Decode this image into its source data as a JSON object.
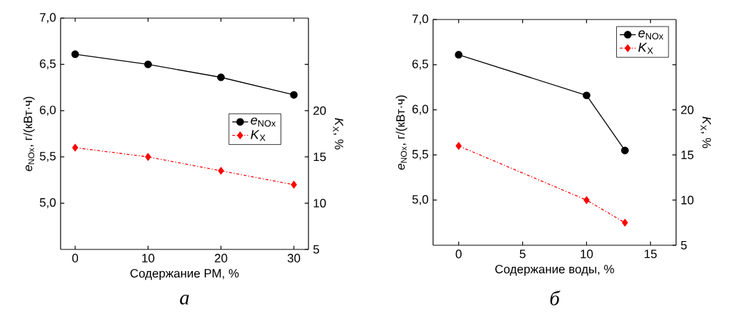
{
  "chart_data": [
    {
      "type": "line",
      "title": "а",
      "xlabel": "Содержание РМ, %",
      "ylabel": "*e*$_{NOx}$, г/(кВт·ч)",
      "y2label": "*K*$_{X}$, %",
      "x": [
        0,
        10,
        20,
        30
      ],
      "xlim": [
        -2,
        32
      ],
      "xticks": [
        0,
        10,
        20,
        30
      ],
      "ylim": [
        4.5,
        7.0
      ],
      "yticks": [
        {
          "value": 5.0,
          "label": "5,0"
        },
        {
          "value": 5.5,
          "label": "5,5"
        },
        {
          "value": 6.0,
          "label": "6,0"
        },
        {
          "value": 6.5,
          "label": "6,5"
        },
        {
          "value": 7.0,
          "label": "7,0"
        }
      ],
      "y2lim": [
        5,
        30
      ],
      "y2ticks": [
        5,
        10,
        15,
        20,
        {
          "value": 25,
          "label": null
        }
      ],
      "grid": false,
      "legend": "right",
      "series": [
        {
          "name": "*e*$_{NOx}$",
          "color": "#000000",
          "values": [
            6.61,
            6.5,
            6.36,
            6.17
          ],
          "marker": "circle",
          "line_style": "solid"
        },
        {
          "name": "*K*$_{X}$",
          "color": "#ff0000",
          "values": [
            16,
            15,
            13.5,
            12
          ],
          "marker": "diamond",
          "line_style": "dashed",
          "axis": "y2"
        }
      ]
    },
    {
      "type": "line",
      "title": "б",
      "xlabel": "Содержание воды, %",
      "ylabel": "*e*$_{NOx}$, г/(кВт·ч)",
      "y2label": "*K*$_{X}$, %",
      "x": [
        0,
        10,
        13
      ],
      "xlim": [
        -2,
        17
      ],
      "xticks": [
        0,
        5,
        10,
        15
      ],
      "ylim": [
        4.5,
        7.0
      ],
      "yticks": [
        {
          "value": 5.0,
          "label": "5,0"
        },
        {
          "value": 5.5,
          "label": "5,5"
        },
        {
          "value": 6.0,
          "label": "6,0"
        },
        {
          "value": 6.5,
          "label": "6,5"
        },
        {
          "value": 7.0,
          "label": "7,0"
        }
      ],
      "y2lim": [
        5,
        30
      ],
      "y2ticks": [
        5,
        10,
        15,
        20,
        {
          "value": 25,
          "label": null
        }
      ],
      "grid": false,
      "legend": "top right",
      "series": [
        {
          "name": "*e*$_{NOx}$",
          "color": "#000000",
          "values": [
            6.61,
            6.16,
            5.55
          ],
          "marker": "circle",
          "line_style": "solid"
        },
        {
          "name": "*K*$_{X}$",
          "color": "#ff0000",
          "values": [
            16,
            10,
            7.5
          ],
          "marker": "diamond",
          "line_style": "dashed",
          "axis": "y2"
        }
      ]
    }
  ]
}
